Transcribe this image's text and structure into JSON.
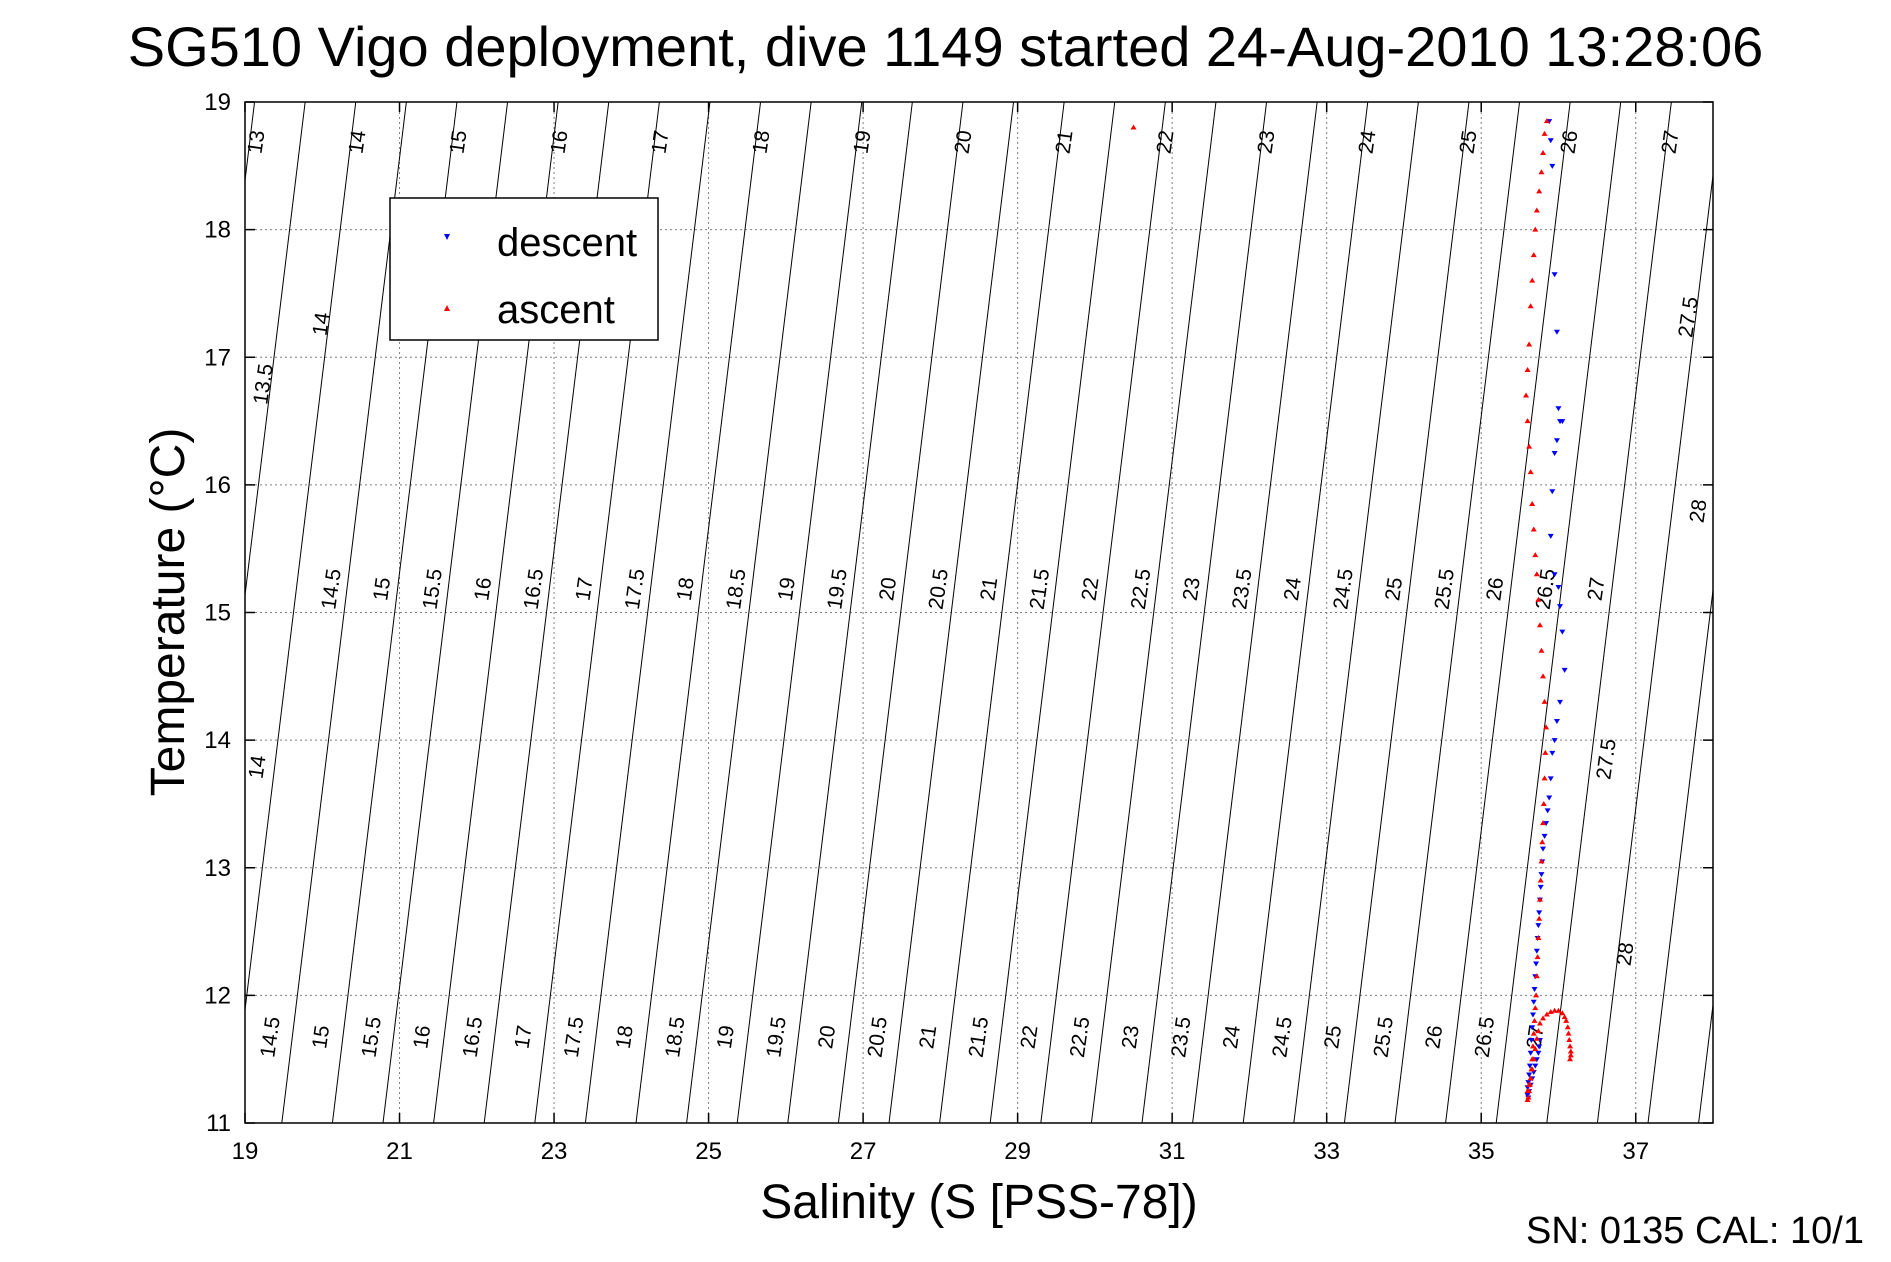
{
  "title": "SG510 Vigo deployment, dive 1149 started 24-Aug-2010 13:28:06",
  "footer": "SN: 0135  CAL: 10/1",
  "colors": {
    "descent": "#0000ff",
    "ascent": "#ff0000",
    "axes": "#000000",
    "grid": "#808080"
  },
  "chart_data": {
    "type": "scatter",
    "xlabel": "Salinity (S [PSS-78])",
    "ylabel": "Temperature (°C)",
    "xlim": [
      19,
      38
    ],
    "ylim": [
      11,
      19
    ],
    "xticks": [
      19,
      21,
      23,
      25,
      27,
      29,
      31,
      33,
      35,
      37
    ],
    "yticks": [
      11,
      12,
      13,
      14,
      15,
      16,
      17,
      18,
      19
    ],
    "grid": true,
    "legend": {
      "position": "top-left",
      "entries": [
        "descent",
        "ascent"
      ]
    },
    "series": [
      {
        "name": "descent",
        "marker": "down-triangle",
        "color": "#0000ff",
        "x": [
          35.88,
          35.9,
          35.92,
          35.95,
          35.98,
          36.0,
          36.05,
          36.02,
          35.98,
          35.95,
          35.92,
          35.9,
          35.95,
          36.0,
          36.02,
          36.05,
          36.08,
          36.02,
          35.98,
          35.95,
          35.92,
          35.9,
          35.88,
          35.86,
          35.84,
          35.82,
          35.8,
          35.79,
          35.78,
          35.77,
          35.76,
          35.75,
          35.74,
          35.73,
          35.72,
          35.71,
          35.7,
          35.69,
          35.68,
          35.67,
          35.66,
          35.65,
          35.64,
          35.63,
          35.62,
          35.61,
          35.6,
          35.6,
          35.61,
          35.62,
          35.64,
          35.66,
          35.68,
          35.7,
          35.72,
          35.74,
          35.75,
          35.76
        ],
        "y": [
          18.85,
          18.7,
          18.5,
          17.65,
          17.2,
          16.6,
          16.5,
          16.5,
          16.35,
          16.25,
          15.95,
          15.6,
          15.3,
          15.2,
          15.05,
          14.85,
          14.55,
          14.3,
          14.15,
          14.0,
          13.9,
          13.7,
          13.55,
          13.45,
          13.35,
          13.25,
          13.15,
          13.05,
          12.95,
          12.85,
          12.75,
          12.65,
          12.55,
          12.45,
          12.35,
          12.25,
          12.15,
          12.05,
          11.95,
          11.85,
          11.75,
          11.65,
          11.55,
          11.45,
          11.38,
          11.32,
          11.28,
          11.22,
          11.2,
          11.25,
          11.3,
          11.35,
          11.4,
          11.45,
          11.5,
          11.55,
          11.6,
          11.65
        ]
      },
      {
        "name": "ascent",
        "marker": "up-triangle",
        "color": "#ff0000",
        "x": [
          30.5,
          35.85,
          35.82,
          35.8,
          35.78,
          35.75,
          35.72,
          35.7,
          35.68,
          35.66,
          35.64,
          35.62,
          35.6,
          35.58,
          35.6,
          35.62,
          35.64,
          35.66,
          35.68,
          35.7,
          35.72,
          35.74,
          35.76,
          35.78,
          35.8,
          35.82,
          35.84,
          35.83,
          35.82,
          35.81,
          35.8,
          35.79,
          35.78,
          35.77,
          35.76,
          35.75,
          35.74,
          35.73,
          35.72,
          35.71,
          35.7,
          35.69,
          35.68,
          35.67,
          35.66,
          35.65,
          35.64,
          35.63,
          35.62,
          35.61,
          35.6,
          35.6,
          35.62,
          35.64,
          35.66,
          35.68,
          35.7,
          35.72,
          35.74,
          35.76,
          35.8,
          35.85,
          35.9,
          35.95,
          36.0,
          36.05,
          36.08,
          36.1,
          36.12,
          36.13,
          36.14,
          36.15,
          36.16,
          36.16,
          36.15
        ],
        "y": [
          18.8,
          18.85,
          18.75,
          18.6,
          18.45,
          18.3,
          18.15,
          18.0,
          17.8,
          17.6,
          17.4,
          17.1,
          16.9,
          16.7,
          16.5,
          16.3,
          16.1,
          15.85,
          15.65,
          15.45,
          15.3,
          15.1,
          14.9,
          14.7,
          14.5,
          14.3,
          14.1,
          13.9,
          13.7,
          13.5,
          13.35,
          13.2,
          13.05,
          12.9,
          12.75,
          12.6,
          12.45,
          12.3,
          12.15,
          12.0,
          11.9,
          11.8,
          11.7,
          11.6,
          11.5,
          11.42,
          11.35,
          11.3,
          11.25,
          11.2,
          11.18,
          11.25,
          11.3,
          11.35,
          11.42,
          11.5,
          11.58,
          11.66,
          11.72,
          11.78,
          11.82,
          11.85,
          11.87,
          11.88,
          11.88,
          11.86,
          11.83,
          11.8,
          11.75,
          11.7,
          11.65,
          11.6,
          11.56,
          11.53,
          11.5
        ]
      }
    ],
    "isopycnals": {
      "top_labels": [
        "13",
        "14",
        "15",
        "16",
        "17",
        "18",
        "19",
        "20",
        "21",
        "22",
        "23",
        "24",
        "25",
        "26",
        "27"
      ],
      "left_labels": [
        "13.5",
        "14"
      ],
      "right_labels": [
        "27.5",
        "28"
      ],
      "mid_labels": [
        "14.5",
        "15",
        "15.5",
        "16",
        "16.5",
        "17",
        "17.5",
        "18",
        "18.5",
        "19",
        "19.5",
        "20",
        "20.5",
        "21",
        "21.5",
        "22",
        "22.5",
        "23",
        "23.5",
        "24",
        "24.5",
        "25",
        "25.5",
        "26",
        "26.5",
        "27"
      ],
      "mid_right_labels": [
        "27.5",
        "28"
      ],
      "bottom_labels": [
        "14.5",
        "15",
        "15.5",
        "16",
        "16.5",
        "17",
        "17.5",
        "18",
        "18.5",
        "19",
        "19.5",
        "20",
        "20.5",
        "21",
        "21.5",
        "22",
        "22.5",
        "23",
        "23.5",
        "24",
        "24.5",
        "25",
        "25.5",
        "26",
        "26.5",
        "27"
      ]
    }
  }
}
